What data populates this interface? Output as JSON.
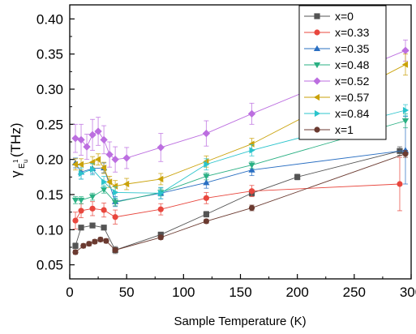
{
  "chart_data": {
    "type": "scatter",
    "xlabel": "Sample Temperature (K)",
    "ylabel": {
      "main": "γ",
      "sub": "E",
      "subsub": "u",
      "sup": "1",
      "unit": "(THz)"
    },
    "xlim": [
      0,
      300
    ],
    "ylim": [
      0.03,
      0.42
    ],
    "xticks": [
      "0",
      "50",
      "100",
      "150",
      "200",
      "250",
      "300"
    ],
    "yticks": [
      "0.05",
      "0.10",
      "0.15",
      "0.20",
      "0.25",
      "0.30",
      "0.35",
      "0.40"
    ],
    "legend_position": "top-right",
    "series": [
      {
        "name": "x=0",
        "color": "#545454",
        "marker": "square",
        "points": [
          [
            5,
            0.077,
            0.004
          ],
          [
            10,
            0.103,
            0.003
          ],
          [
            20,
            0.106,
            0.003
          ],
          [
            30,
            0.103,
            0.003
          ],
          [
            40,
            0.071,
            0.005
          ],
          [
            80,
            0.093,
            0.003
          ],
          [
            120,
            0.122,
            0.004
          ],
          [
            160,
            0.152,
            0.004
          ],
          [
            200,
            0.175,
            0.004
          ],
          [
            290,
            0.212,
            0.006
          ]
        ]
      },
      {
        "name": "x=0.33",
        "color": "#e8473e",
        "marker": "circle",
        "points": [
          [
            5,
            0.113,
            0.012
          ],
          [
            10,
            0.127,
            0.01
          ],
          [
            20,
            0.13,
            0.01
          ],
          [
            30,
            0.128,
            0.01
          ],
          [
            40,
            0.118,
            0.01
          ],
          [
            80,
            0.129,
            0.008
          ],
          [
            120,
            0.145,
            0.008
          ],
          [
            160,
            0.155,
            0.008
          ],
          [
            290,
            0.165,
            0.038
          ]
        ]
      },
      {
        "name": "x=0.35",
        "color": "#2a6fc2",
        "marker": "triangle-up",
        "points": [
          [
            5,
            0.195,
            0.007
          ],
          [
            10,
            0.182,
            0.01
          ],
          [
            20,
            0.187,
            0.007
          ],
          [
            30,
            0.188,
            0.007
          ],
          [
            40,
            0.14,
            0.007
          ],
          [
            80,
            0.152,
            0.008
          ],
          [
            120,
            0.167,
            0.008
          ],
          [
            160,
            0.185,
            0.008
          ],
          [
            295,
            0.213,
            0.048
          ]
        ]
      },
      {
        "name": "x=0.48",
        "color": "#2ab083",
        "marker": "triangle-down",
        "points": [
          [
            5,
            0.142,
            0.005
          ],
          [
            10,
            0.142,
            0.005
          ],
          [
            20,
            0.147,
            0.005
          ],
          [
            30,
            0.157,
            0.005
          ],
          [
            40,
            0.139,
            0.005
          ],
          [
            80,
            0.153,
            0.005
          ],
          [
            120,
            0.176,
            0.005
          ],
          [
            160,
            0.192,
            0.005
          ],
          [
            295,
            0.255,
            0.01
          ]
        ]
      },
      {
        "name": "x=0.52",
        "color": "#bc6ee0",
        "marker": "diamond",
        "points": [
          [
            5,
            0.23,
            0.02
          ],
          [
            10,
            0.228,
            0.022
          ],
          [
            15,
            0.218,
            0.018
          ],
          [
            20,
            0.235,
            0.022
          ],
          [
            25,
            0.24,
            0.02
          ],
          [
            30,
            0.228,
            0.02
          ],
          [
            35,
            0.207,
            0.018
          ],
          [
            40,
            0.2,
            0.018
          ],
          [
            50,
            0.202,
            0.015
          ],
          [
            80,
            0.217,
            0.02
          ],
          [
            120,
            0.237,
            0.018
          ],
          [
            160,
            0.265,
            0.015
          ],
          [
            295,
            0.355,
            0.015
          ]
        ]
      },
      {
        "name": "x=0.57",
        "color": "#caa209",
        "marker": "triangle-left",
        "points": [
          [
            5,
            0.193,
            0.008
          ],
          [
            10,
            0.193,
            0.008
          ],
          [
            20,
            0.196,
            0.008
          ],
          [
            25,
            0.2,
            0.008
          ],
          [
            30,
            0.188,
            0.008
          ],
          [
            35,
            0.168,
            0.008
          ],
          [
            40,
            0.162,
            0.008
          ],
          [
            50,
            0.165,
            0.008
          ],
          [
            80,
            0.172,
            0.008
          ],
          [
            120,
            0.197,
            0.008
          ],
          [
            160,
            0.222,
            0.008
          ],
          [
            295,
            0.335,
            0.015
          ]
        ]
      },
      {
        "name": "x=0.84",
        "color": "#2bc4cc",
        "marker": "triangle-right",
        "points": [
          [
            10,
            0.18,
            0.008
          ],
          [
            20,
            0.186,
            0.008
          ],
          [
            30,
            0.168,
            0.008
          ],
          [
            40,
            0.153,
            0.008
          ],
          [
            80,
            0.152,
            0.008
          ],
          [
            120,
            0.193,
            0.008
          ],
          [
            160,
            0.213,
            0.008
          ],
          [
            295,
            0.27,
            0.008
          ]
        ]
      },
      {
        "name": "x=1",
        "color": "#6b3a30",
        "marker": "circle",
        "points": [
          [
            5,
            0.068,
            0.003
          ],
          [
            12,
            0.077,
            0.003
          ],
          [
            17,
            0.08,
            0.003
          ],
          [
            22,
            0.083,
            0.003
          ],
          [
            27,
            0.086,
            0.003
          ],
          [
            32,
            0.084,
            0.003
          ],
          [
            40,
            0.071,
            0.003
          ],
          [
            80,
            0.089,
            0.003
          ],
          [
            120,
            0.112,
            0.003
          ],
          [
            160,
            0.131,
            0.004
          ],
          [
            295,
            0.208,
            0.005
          ]
        ]
      }
    ]
  }
}
